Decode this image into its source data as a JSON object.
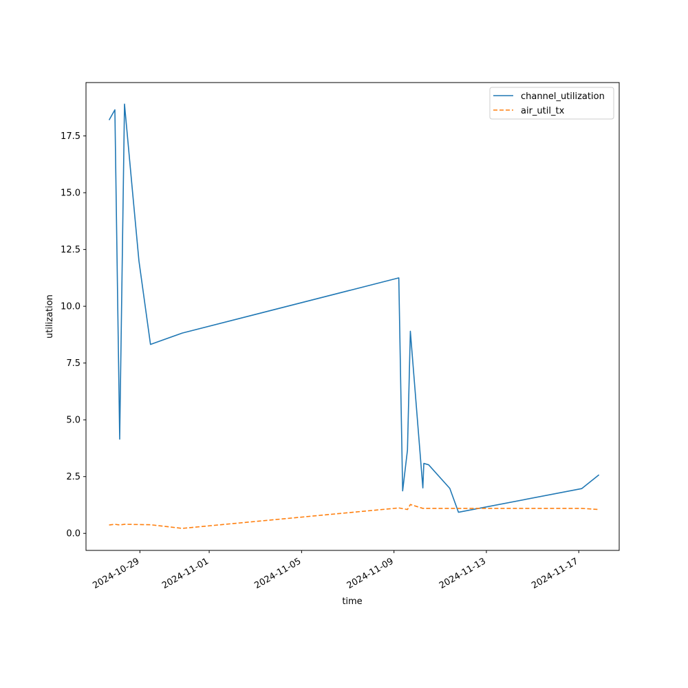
{
  "chart_data": {
    "type": "line",
    "title": "",
    "xlabel": "time",
    "ylabel": "utilization",
    "x_tick_labels": [
      "2024-10-29",
      "2024-11-01",
      "2024-11-05",
      "2024-11-09",
      "2024-11-13",
      "2024-11-17"
    ],
    "x_tick_dates": [
      "2024-10-29",
      "2024-11-01",
      "2024-11-05",
      "2024-11-09",
      "2024-11-13",
      "2024-11-17"
    ],
    "y_ticks": [
      0.0,
      2.5,
      5.0,
      7.5,
      10.0,
      12.5,
      15.0,
      17.5
    ],
    "y_tick_labels": [
      "0.0",
      "2.5",
      "5.0",
      "7.5",
      "10.0",
      "12.5",
      "15.0",
      "17.5"
    ],
    "xlim": [
      "2024-10-26T16:00",
      "2024-11-18T18:00"
    ],
    "ylim": [
      -0.75,
      19.85
    ],
    "grid": false,
    "legend_position": "top-right",
    "series": [
      {
        "name": "channel_utilization",
        "color": "#1f77b4",
        "style": "solid",
        "points": [
          [
            "2024-10-27T16:00",
            18.2
          ],
          [
            "2024-10-27T22:00",
            18.65
          ],
          [
            "2024-10-28T03:00",
            4.15
          ],
          [
            "2024-10-28T08:00",
            18.9
          ],
          [
            "2024-10-28T16:00",
            15.2
          ],
          [
            "2024-10-28T23:00",
            12.0
          ],
          [
            "2024-10-29T11:00",
            8.32
          ],
          [
            "2024-10-30T20:00",
            8.82
          ],
          [
            "2024-11-09T05:00",
            11.25
          ],
          [
            "2024-11-09T09:00",
            1.87
          ],
          [
            "2024-11-09T14:00",
            3.67
          ],
          [
            "2024-11-09T17:00",
            8.9
          ],
          [
            "2024-11-10T06:00",
            2.0
          ],
          [
            "2024-11-10T07:00",
            3.08
          ],
          [
            "2024-11-10T12:00",
            3.02
          ],
          [
            "2024-11-11T10:00",
            1.98
          ],
          [
            "2024-11-11T19:00",
            0.93
          ],
          [
            "2024-11-17T03:00",
            1.97
          ],
          [
            "2024-11-17T21:00",
            2.58
          ]
        ]
      },
      {
        "name": "air_util_tx",
        "color": "#ff7f0e",
        "style": "dashed",
        "points": [
          [
            "2024-10-27T16:00",
            0.37
          ],
          [
            "2024-10-27T22:00",
            0.4
          ],
          [
            "2024-10-28T03:00",
            0.37
          ],
          [
            "2024-10-28T08:00",
            0.4
          ],
          [
            "2024-10-29T11:00",
            0.38
          ],
          [
            "2024-10-30T20:00",
            0.22
          ],
          [
            "2024-11-09T05:00",
            1.12
          ],
          [
            "2024-11-09T14:00",
            1.05
          ],
          [
            "2024-11-09T17:00",
            1.27
          ],
          [
            "2024-11-10T06:00",
            1.1
          ],
          [
            "2024-11-11T19:00",
            1.1
          ],
          [
            "2024-11-17T03:00",
            1.1
          ],
          [
            "2024-11-17T21:00",
            1.05
          ]
        ]
      }
    ]
  }
}
